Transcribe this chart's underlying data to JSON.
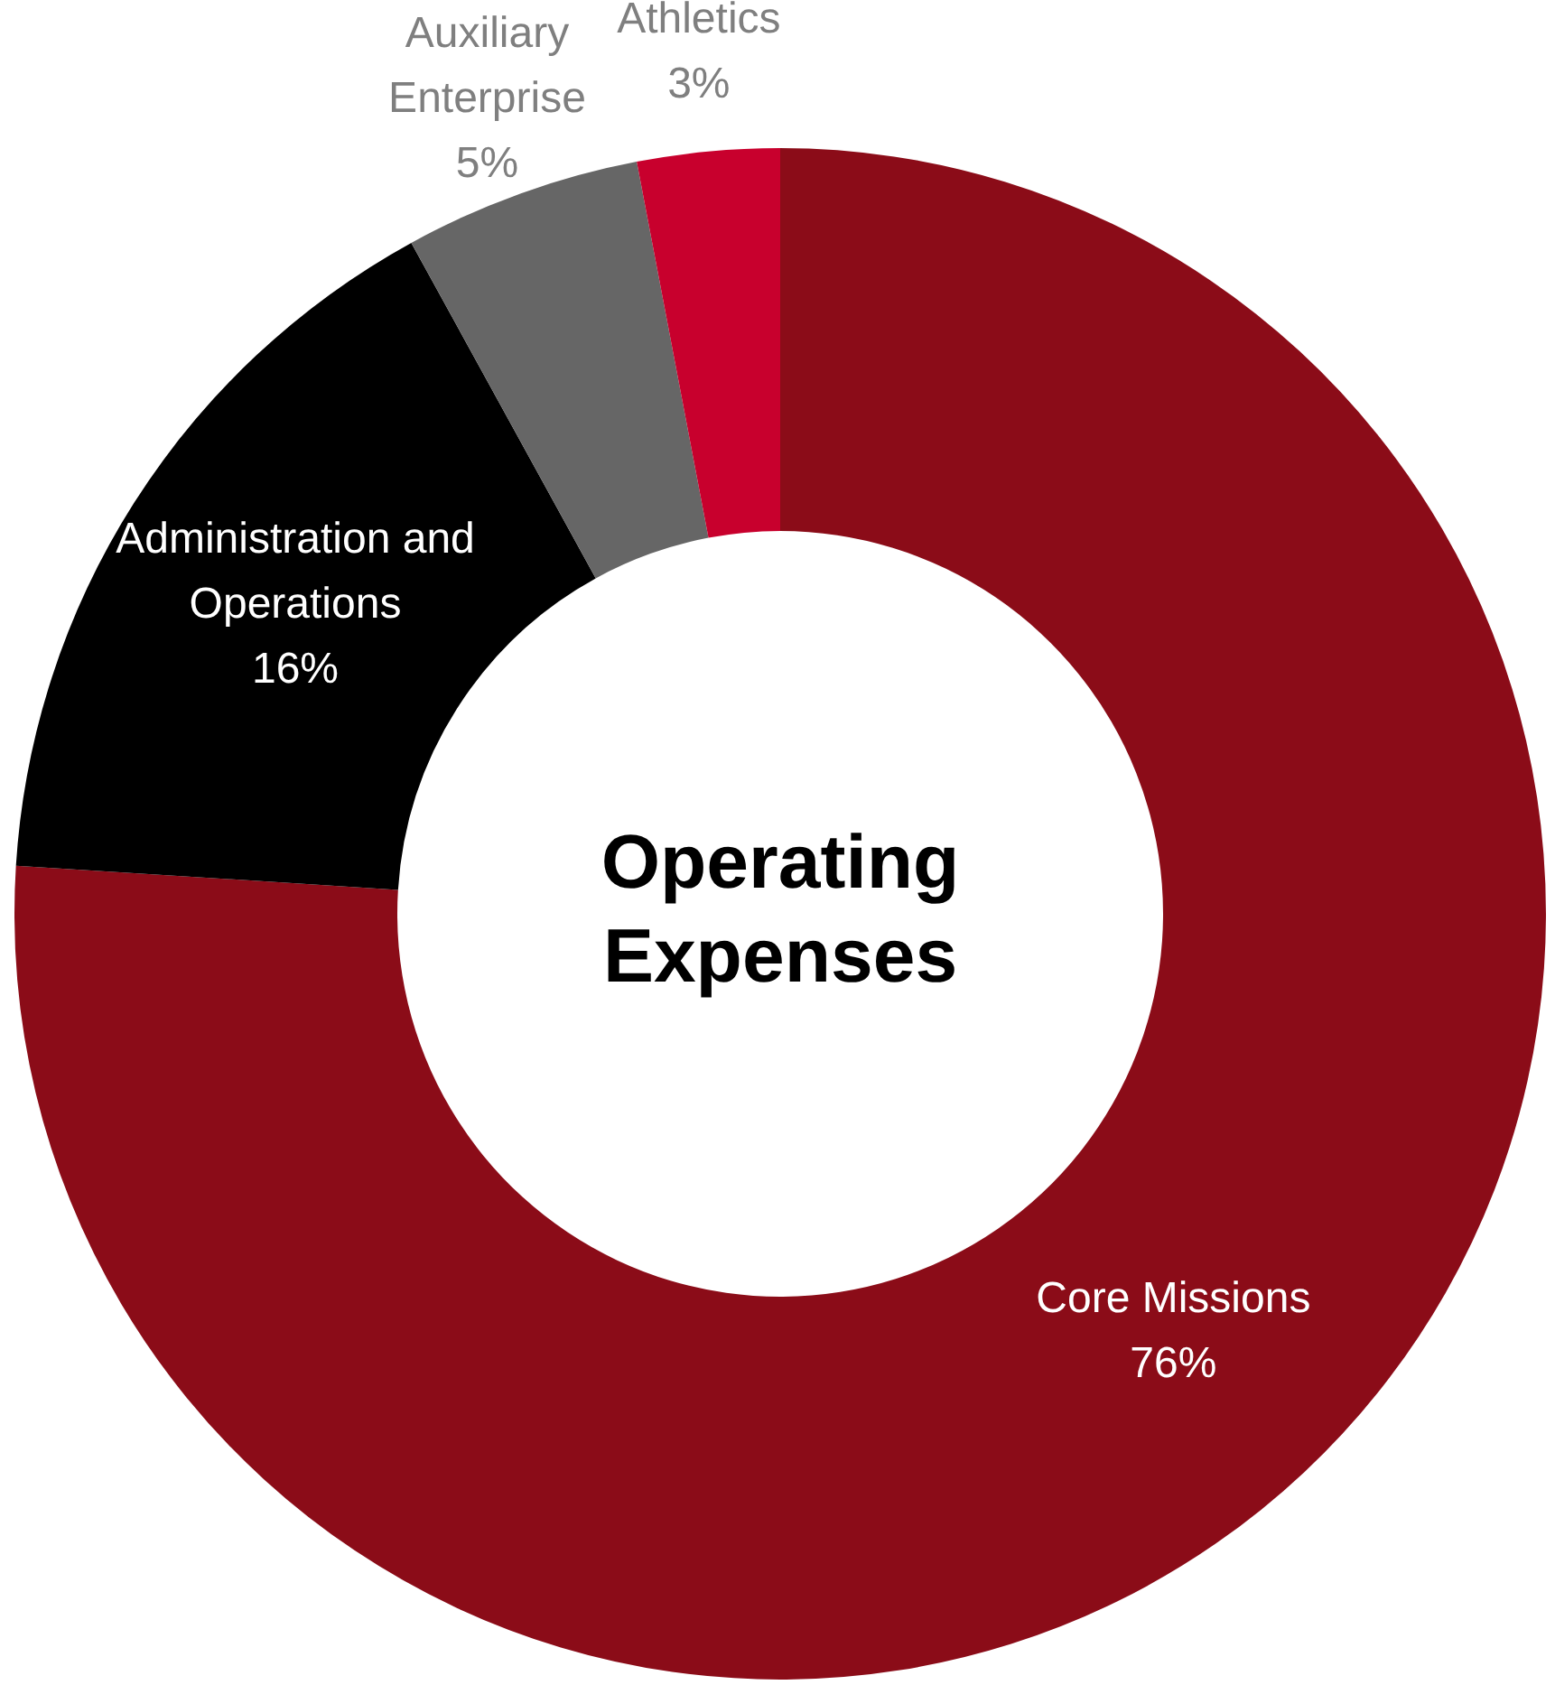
{
  "chart_data": {
    "type": "donut",
    "title": "Operating Expenses",
    "categories": [
      "Core Missions",
      "Administration and Operations",
      "Auxiliary Enterprise",
      "Athletics"
    ],
    "values": [
      76,
      16,
      5,
      3
    ],
    "colors": [
      "#8b0c18",
      "#000000",
      "#666666",
      "#c8002d"
    ],
    "value_labels": [
      "76%",
      "16%",
      "5%",
      "3%"
    ],
    "legend": false
  }
}
